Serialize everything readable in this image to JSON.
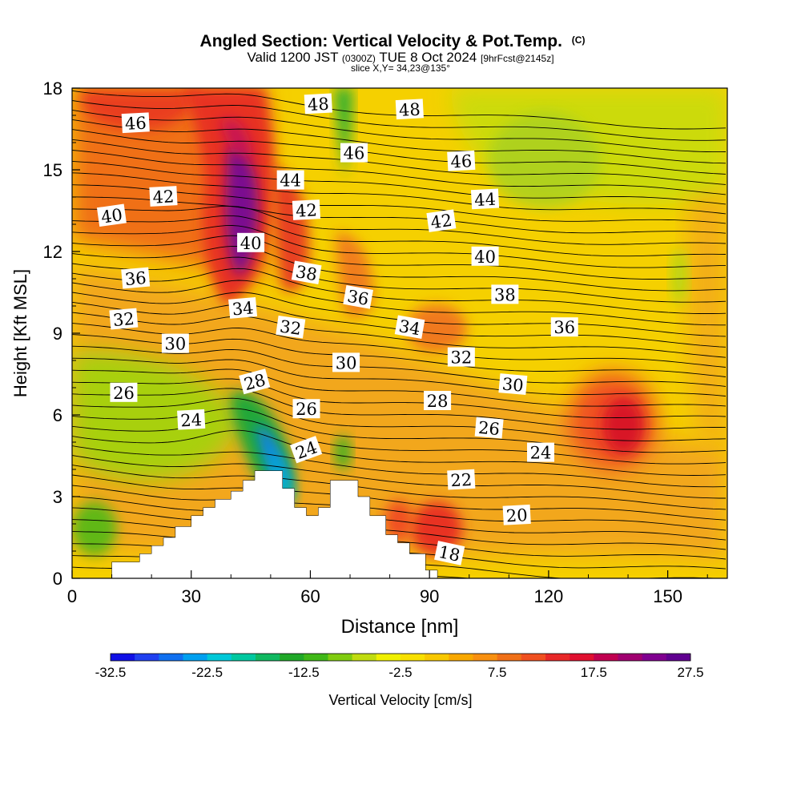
{
  "chart_data": {
    "type": "heatmap",
    "title": "Angled Section: Vertical Velocity & Pot.Temp.",
    "title_mark": "(C)",
    "subtitle_parts": {
      "valid_prefix": "Valid 1200 JST",
      "utc": "(0300Z)",
      "date": "TUE 8 Oct 2024",
      "forecast": "[9hrFcst@2145z]"
    },
    "slice_label": "slice X,Y= 34,23@135°",
    "xlabel": "Distance [nm]",
    "ylabel": "Height [Kft MSL]",
    "xlim": [
      0,
      165
    ],
    "ylim": [
      0,
      18
    ],
    "xticks": [
      "0",
      "30",
      "60",
      "90",
      "120",
      "150"
    ],
    "xtick_values": [
      0,
      30,
      60,
      90,
      120,
      150
    ],
    "yticks": [
      "0",
      "3",
      "6",
      "9",
      "12",
      "15",
      "18"
    ],
    "ytick_values": [
      0,
      3,
      6,
      9,
      12,
      15,
      18
    ],
    "colorbar": {
      "label": "Vertical Velocity [cm/s]",
      "ticks": [
        "-32.5",
        "-22.5",
        "-12.5",
        "-2.5",
        "7.5",
        "17.5",
        "27.5"
      ],
      "tick_values": [
        -32.5,
        -22.5,
        -12.5,
        -2.5,
        7.5,
        17.5,
        27.5
      ],
      "min": -32.5,
      "max": 27.5,
      "colors": [
        "#1010e6",
        "#2040f0",
        "#1070f0",
        "#00a0f0",
        "#00c8d8",
        "#00c8a0",
        "#10b860",
        "#20a828",
        "#40b818",
        "#80cc10",
        "#c0dc10",
        "#f0f000",
        "#f8e000",
        "#f8c800",
        "#f8a800",
        "#f89010",
        "#f07018",
        "#f05020",
        "#e82828",
        "#e01030",
        "#c00050",
        "#a00070",
        "#800090",
        "#600090"
      ]
    },
    "grid": false,
    "terrain_profile": [
      [
        0,
        0
      ],
      [
        10,
        0
      ],
      [
        10,
        0.6
      ],
      [
        17,
        0.6
      ],
      [
        17,
        0.9
      ],
      [
        20,
        0.9
      ],
      [
        20,
        1.2
      ],
      [
        23,
        1.2
      ],
      [
        23,
        1.5
      ],
      [
        26,
        1.5
      ],
      [
        26,
        1.9
      ],
      [
        30,
        1.9
      ],
      [
        30,
        2.3
      ],
      [
        33,
        2.3
      ],
      [
        33,
        2.6
      ],
      [
        36,
        2.6
      ],
      [
        36,
        2.9
      ],
      [
        40,
        2.9
      ],
      [
        40,
        3.2
      ],
      [
        43,
        3.2
      ],
      [
        43,
        3.6
      ],
      [
        46,
        3.6
      ],
      [
        46,
        3.95
      ],
      [
        53,
        3.95
      ],
      [
        53,
        3.3
      ],
      [
        56,
        3.3
      ],
      [
        56,
        2.6
      ],
      [
        59,
        2.6
      ],
      [
        59,
        2.3
      ],
      [
        62,
        2.3
      ],
      [
        62,
        2.6
      ],
      [
        65,
        2.6
      ],
      [
        65,
        3.6
      ],
      [
        72,
        3.6
      ],
      [
        72,
        3.0
      ],
      [
        75,
        3.0
      ],
      [
        75,
        2.3
      ],
      [
        79,
        2.3
      ],
      [
        79,
        1.6
      ],
      [
        82,
        1.6
      ],
      [
        82,
        1.3
      ],
      [
        85,
        1.3
      ],
      [
        85,
        0.9
      ],
      [
        89,
        0.9
      ],
      [
        89,
        0.3
      ],
      [
        92,
        0.3
      ],
      [
        92,
        0
      ],
      [
        165,
        0
      ]
    ],
    "contours": [
      {
        "label": "46",
        "x": 16,
        "y": 16.7,
        "rotation": -3
      },
      {
        "label": "48",
        "x": 62,
        "y": 17.4,
        "rotation": -3
      },
      {
        "label": "48",
        "x": 85,
        "y": 17.2,
        "rotation": -3
      },
      {
        "label": "46",
        "x": 71,
        "y": 15.6,
        "rotation": 0
      },
      {
        "label": "46",
        "x": 98,
        "y": 15.3,
        "rotation": -3
      },
      {
        "label": "44",
        "x": 55,
        "y": 14.6,
        "rotation": 0
      },
      {
        "label": "44",
        "x": 104,
        "y": 13.9,
        "rotation": -3
      },
      {
        "label": "42",
        "x": 23,
        "y": 14.0,
        "rotation": -3
      },
      {
        "label": "42",
        "x": 59,
        "y": 13.5,
        "rotation": -3
      },
      {
        "label": "42",
        "x": 93,
        "y": 13.1,
        "rotation": -8
      },
      {
        "label": "40",
        "x": 10,
        "y": 13.3,
        "rotation": -8
      },
      {
        "label": "40",
        "x": 45,
        "y": 12.3,
        "rotation": 0
      },
      {
        "label": "40",
        "x": 104,
        "y": 11.8,
        "rotation": 0
      },
      {
        "label": "38",
        "x": 59,
        "y": 11.2,
        "rotation": 10
      },
      {
        "label": "38",
        "x": 109,
        "y": 10.4,
        "rotation": 0
      },
      {
        "label": "36",
        "x": 16,
        "y": 11.0,
        "rotation": -5
      },
      {
        "label": "36",
        "x": 72,
        "y": 10.3,
        "rotation": 10
      },
      {
        "label": "36",
        "x": 124,
        "y": 9.2,
        "rotation": 0
      },
      {
        "label": "34",
        "x": 43,
        "y": 9.9,
        "rotation": -5
      },
      {
        "label": "34",
        "x": 85,
        "y": 9.2,
        "rotation": 10
      },
      {
        "label": "32",
        "x": 13,
        "y": 9.5,
        "rotation": -5
      },
      {
        "label": "32",
        "x": 55,
        "y": 9.2,
        "rotation": 8
      },
      {
        "label": "32",
        "x": 98,
        "y": 8.1,
        "rotation": 0
      },
      {
        "label": "30",
        "x": 26,
        "y": 8.6,
        "rotation": 0
      },
      {
        "label": "30",
        "x": 69,
        "y": 7.9,
        "rotation": 0
      },
      {
        "label": "30",
        "x": 111,
        "y": 7.1,
        "rotation": 5
      },
      {
        "label": "28",
        "x": 46,
        "y": 7.2,
        "rotation": -15
      },
      {
        "label": "28",
        "x": 92,
        "y": 6.5,
        "rotation": 0
      },
      {
        "label": "26",
        "x": 13,
        "y": 6.8,
        "rotation": 0
      },
      {
        "label": "26",
        "x": 59,
        "y": 6.2,
        "rotation": 0
      },
      {
        "label": "26",
        "x": 105,
        "y": 5.5,
        "rotation": 5
      },
      {
        "label": "24",
        "x": 30,
        "y": 5.8,
        "rotation": -3
      },
      {
        "label": "24",
        "x": 59,
        "y": 4.7,
        "rotation": -20
      },
      {
        "label": "24",
        "x": 118,
        "y": 4.6,
        "rotation": 0
      },
      {
        "label": "22",
        "x": 98,
        "y": 3.6,
        "rotation": -3
      },
      {
        "label": "20",
        "x": 112,
        "y": 2.3,
        "rotation": -3
      },
      {
        "label": "18",
        "x": 95,
        "y": 0.9,
        "rotation": 12
      }
    ]
  }
}
